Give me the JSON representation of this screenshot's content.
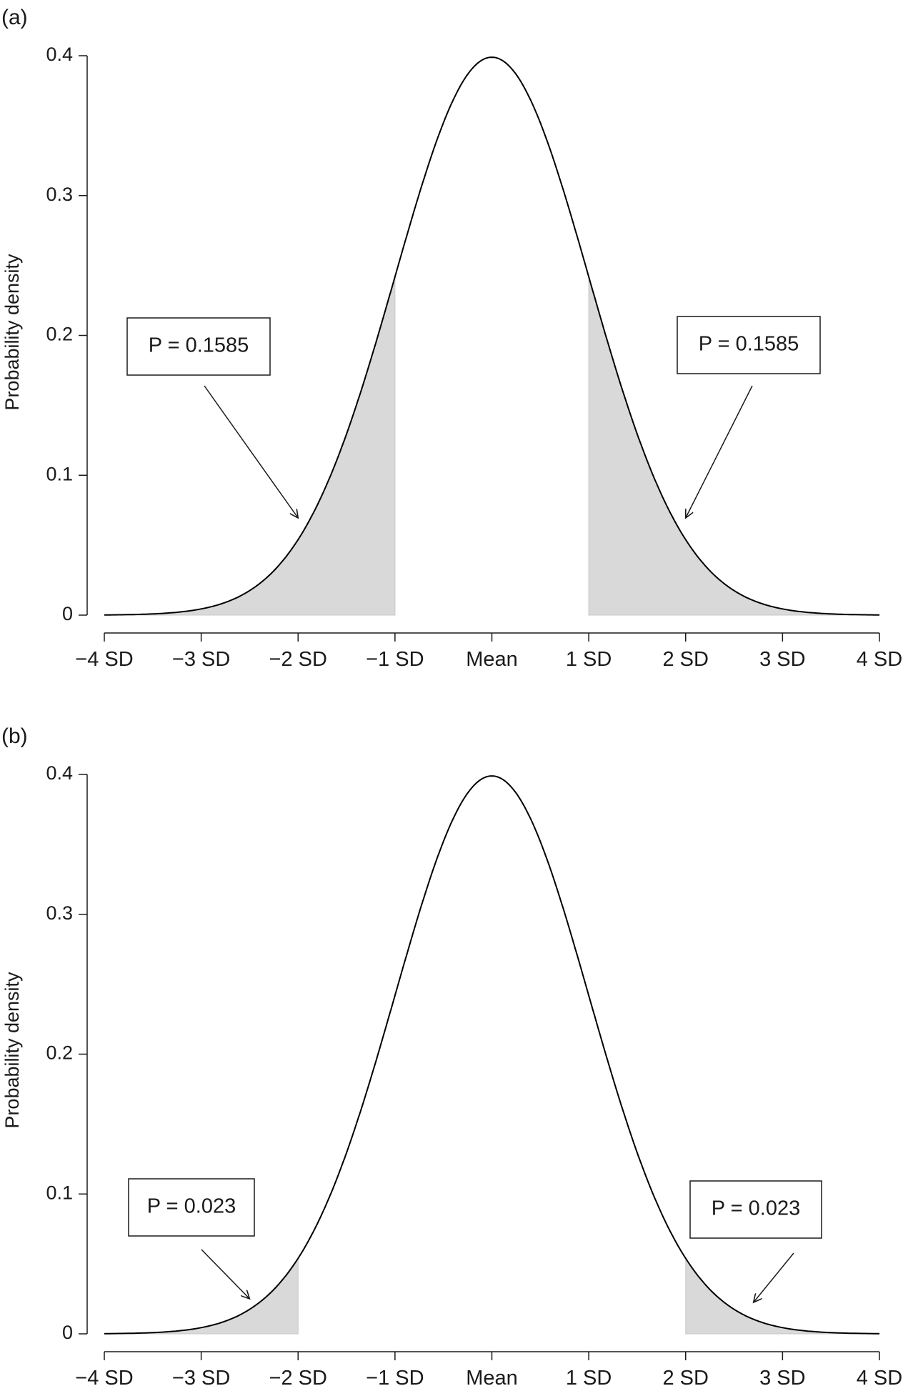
{
  "chart_data": [
    {
      "type": "area",
      "panel_label": "(a)",
      "title": "",
      "xlabel": "",
      "ylabel": "Probability density",
      "distribution": "normal",
      "mean": 0,
      "sd": 1,
      "xlim": [
        -4,
        4
      ],
      "ylim": [
        0,
        0.4
      ],
      "x_ticks": [
        -4,
        -3,
        -2,
        -1,
        0,
        1,
        2,
        3,
        4
      ],
      "x_tick_labels": [
        "−4 SD",
        "−3 SD",
        "−2 SD",
        "−1 SD",
        "Mean",
        "1 SD",
        "2 SD",
        "3 SD",
        "4 SD"
      ],
      "y_ticks": [
        0,
        0.1,
        0.2,
        0.3,
        0.4
      ],
      "y_tick_labels": [
        "0",
        "0.1",
        "0.2",
        "0.3",
        "0.4"
      ],
      "grid": false,
      "shaded_regions": [
        {
          "from": -4,
          "to": -1,
          "probability": 0.1585
        },
        {
          "from": 1,
          "to": 4,
          "probability": 0.1585
        }
      ],
      "annotations": [
        {
          "text": "P = 0.1585",
          "points_to_x": -2
        },
        {
          "text": "P = 0.1585",
          "points_to_x": 2
        }
      ],
      "colors": {
        "curve": "#000000",
        "shade": "#d9d9d9"
      }
    },
    {
      "type": "area",
      "panel_label": "(b)",
      "title": "",
      "xlabel": "",
      "ylabel": "Probability density",
      "distribution": "normal",
      "mean": 0,
      "sd": 1,
      "xlim": [
        -4,
        4
      ],
      "ylim": [
        0,
        0.4
      ],
      "x_ticks": [
        -4,
        -3,
        -2,
        -1,
        0,
        1,
        2,
        3,
        4
      ],
      "x_tick_labels": [
        "−4 SD",
        "−3 SD",
        "−2 SD",
        "−1 SD",
        "Mean",
        "1 SD",
        "2 SD",
        "3 SD",
        "4 SD"
      ],
      "y_ticks": [
        0,
        0.1,
        0.2,
        0.3,
        0.4
      ],
      "y_tick_labels": [
        "0",
        "0.1",
        "0.2",
        "0.3",
        "0.4"
      ],
      "grid": false,
      "shaded_regions": [
        {
          "from": -4,
          "to": -2,
          "probability": 0.023
        },
        {
          "from": 2,
          "to": 4,
          "probability": 0.023
        }
      ],
      "annotations": [
        {
          "text": "P = 0.023",
          "points_to_x": -2.5
        },
        {
          "text": "P = 0.023",
          "points_to_x": 2.7
        }
      ],
      "colors": {
        "curve": "#000000",
        "shade": "#d9d9d9"
      }
    }
  ]
}
